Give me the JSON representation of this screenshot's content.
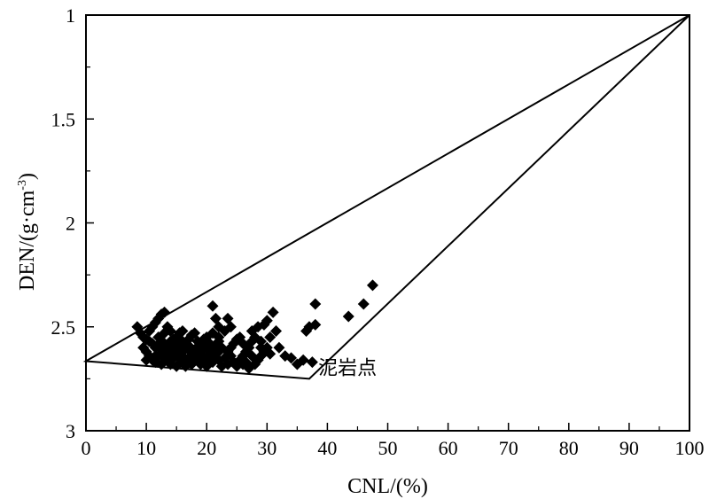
{
  "chart_data": {
    "type": "scatter",
    "title": "",
    "xlabel": "CNL/(%)",
    "ylabel": "DEN/(g·cm",
    "ylabel_sup": "-3",
    "ylabel_close": ")",
    "xlim": [
      0,
      100
    ],
    "ylim": [
      1,
      3
    ],
    "y_inverted": true,
    "x_ticks": [
      "0",
      "10",
      "20",
      "30",
      "40",
      "50",
      "60",
      "70",
      "80",
      "90",
      "100"
    ],
    "y_ticks": [
      "1",
      "1.5",
      "2",
      "2.5",
      "3"
    ],
    "grid": false,
    "marker": "diamond",
    "annotation": {
      "text": "泥岩点",
      "x": 38.5,
      "y": 2.7
    },
    "triangle": [
      [
        0,
        2.665
      ],
      [
        37,
        2.75
      ],
      [
        100,
        1.0
      ]
    ],
    "points": [
      [
        8.5,
        2.5
      ],
      [
        9,
        2.53
      ],
      [
        9.5,
        2.55
      ],
      [
        10,
        2.56
      ],
      [
        10.5,
        2.52
      ],
      [
        11,
        2.5
      ],
      [
        11.5,
        2.48
      ],
      [
        12,
        2.46
      ],
      [
        12.5,
        2.44
      ],
      [
        13,
        2.43
      ],
      [
        9.5,
        2.6
      ],
      [
        10,
        2.62
      ],
      [
        10.5,
        2.64
      ],
      [
        11,
        2.58
      ],
      [
        11.5,
        2.6
      ],
      [
        12,
        2.55
      ],
      [
        12.5,
        2.57
      ],
      [
        13,
        2.53
      ],
      [
        13.5,
        2.5
      ],
      [
        14,
        2.52
      ],
      [
        10,
        2.66
      ],
      [
        11,
        2.66
      ],
      [
        12,
        2.64
      ],
      [
        13,
        2.62
      ],
      [
        13.5,
        2.6
      ],
      [
        14,
        2.58
      ],
      [
        14.5,
        2.56
      ],
      [
        15,
        2.55
      ],
      [
        15.5,
        2.53
      ],
      [
        16,
        2.52
      ],
      [
        11.5,
        2.67
      ],
      [
        12.5,
        2.68
      ],
      [
        13.5,
        2.66
      ],
      [
        14.5,
        2.65
      ],
      [
        15,
        2.63
      ],
      [
        15.5,
        2.61
      ],
      [
        16,
        2.6
      ],
      [
        16.5,
        2.58
      ],
      [
        17,
        2.56
      ],
      [
        17.5,
        2.54
      ],
      [
        14,
        2.68
      ],
      [
        15,
        2.69
      ],
      [
        16,
        2.67
      ],
      [
        17,
        2.65
      ],
      [
        18,
        2.63
      ],
      [
        18.5,
        2.6
      ],
      [
        19,
        2.58
      ],
      [
        19.5,
        2.56
      ],
      [
        20,
        2.55
      ],
      [
        18,
        2.53
      ],
      [
        16.5,
        2.69
      ],
      [
        17.5,
        2.68
      ],
      [
        18.5,
        2.66
      ],
      [
        19.5,
        2.65
      ],
      [
        20.5,
        2.63
      ],
      [
        21,
        2.61
      ],
      [
        21.5,
        2.59
      ],
      [
        22,
        2.57
      ],
      [
        21,
        2.53
      ],
      [
        22,
        2.55
      ],
      [
        19,
        2.68
      ],
      [
        20,
        2.69
      ],
      [
        21,
        2.67
      ],
      [
        22,
        2.66
      ],
      [
        23,
        2.65
      ],
      [
        23.5,
        2.62
      ],
      [
        24,
        2.6
      ],
      [
        24.5,
        2.58
      ],
      [
        25,
        2.56
      ],
      [
        23,
        2.52
      ],
      [
        22.5,
        2.69
      ],
      [
        23.5,
        2.68
      ],
      [
        24.5,
        2.67
      ],
      [
        25.5,
        2.66
      ],
      [
        26,
        2.64
      ],
      [
        26.5,
        2.62
      ],
      [
        27,
        2.6
      ],
      [
        27.5,
        2.57
      ],
      [
        28,
        2.55
      ],
      [
        26,
        2.58
      ],
      [
        25,
        2.69
      ],
      [
        26,
        2.68
      ],
      [
        27,
        2.7
      ],
      [
        28,
        2.68
      ],
      [
        28.5,
        2.66
      ],
      [
        29,
        2.64
      ],
      [
        29.5,
        2.62
      ],
      [
        30,
        2.6
      ],
      [
        30.5,
        2.55
      ],
      [
        29,
        2.57
      ],
      [
        12,
        2.59
      ],
      [
        13,
        2.58
      ],
      [
        14,
        2.57
      ],
      [
        15,
        2.59
      ],
      [
        16,
        2.57
      ],
      [
        17,
        2.59
      ],
      [
        18,
        2.61
      ],
      [
        19,
        2.62
      ],
      [
        20,
        2.6
      ],
      [
        16,
        2.64
      ],
      [
        13,
        2.65
      ],
      [
        14,
        2.63
      ],
      [
        15,
        2.61
      ],
      [
        16,
        2.62
      ],
      [
        17,
        2.61
      ],
      [
        18,
        2.64
      ],
      [
        19,
        2.64
      ],
      [
        20,
        2.66
      ],
      [
        21,
        2.64
      ],
      [
        22,
        2.62
      ],
      [
        21,
        2.4
      ],
      [
        21.5,
        2.46
      ],
      [
        22,
        2.5
      ],
      [
        23.5,
        2.46
      ],
      [
        24,
        2.5
      ],
      [
        25.5,
        2.55
      ],
      [
        27.5,
        2.52
      ],
      [
        28.5,
        2.5
      ],
      [
        29.5,
        2.49
      ],
      [
        30,
        2.47
      ],
      [
        31,
        2.43
      ],
      [
        31.5,
        2.52
      ],
      [
        32,
        2.6
      ],
      [
        33,
        2.64
      ],
      [
        34,
        2.65
      ],
      [
        35,
        2.68
      ],
      [
        36,
        2.66
      ],
      [
        36.5,
        2.52
      ],
      [
        37,
        2.5
      ],
      [
        37.5,
        2.67
      ],
      [
        38,
        2.39
      ],
      [
        38,
        2.49
      ],
      [
        43.5,
        2.45
      ],
      [
        46,
        2.39
      ],
      [
        47.5,
        2.3
      ],
      [
        10.5,
        2.57
      ],
      [
        11.5,
        2.64
      ],
      [
        12.5,
        2.61
      ],
      [
        14.5,
        2.6
      ],
      [
        15.5,
        2.65
      ],
      [
        17.5,
        2.62
      ],
      [
        18.5,
        2.57
      ],
      [
        19.5,
        2.6
      ],
      [
        20.5,
        2.58
      ],
      [
        22.5,
        2.6
      ],
      [
        24,
        2.64
      ],
      [
        26.5,
        2.67
      ],
      [
        27.5,
        2.64
      ],
      [
        29,
        2.6
      ],
      [
        30.5,
        2.63
      ]
    ]
  }
}
